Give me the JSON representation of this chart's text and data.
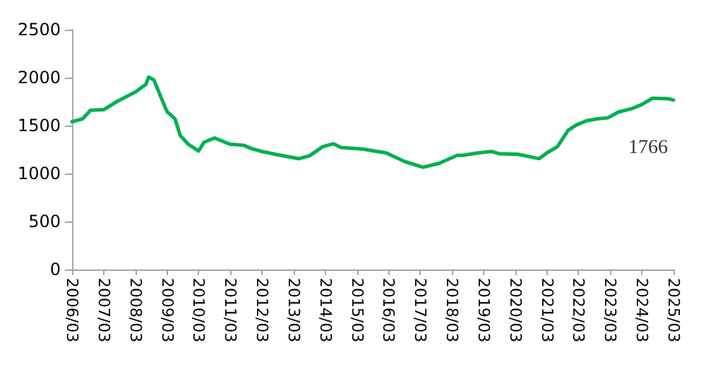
{
  "chart_data": {
    "type": "line",
    "x": [
      "2006-03",
      "2006-07",
      "2006-10",
      "2007-03",
      "2007-08",
      "2008-03",
      "2008-07",
      "2008-08",
      "2008-10",
      "2008-12",
      "2009-03",
      "2009-06",
      "2009-08",
      "2009-11",
      "2010-03",
      "2010-05",
      "2010-09",
      "2011-01",
      "2011-03",
      "2011-08",
      "2011-11",
      "2012-03",
      "2012-08",
      "2013-05",
      "2013-09",
      "2014-02",
      "2014-06",
      "2014-09",
      "2015-05",
      "2016-02",
      "2016-09",
      "2017-04",
      "2017-10",
      "2018-05",
      "2018-07",
      "2019-01",
      "2019-06",
      "2019-09",
      "2020-04",
      "2020-12",
      "2021-03",
      "2021-07",
      "2021-11",
      "2022-02",
      "2022-06",
      "2022-10",
      "2023-02",
      "2023-06",
      "2023-11",
      "2024-03",
      "2024-07",
      "2025-01",
      "2025-03"
    ],
    "series": [
      {
        "color": "#00b050",
        "values": [
          1540,
          1570,
          1660,
          1665,
          1750,
          1850,
          1930,
          2005,
          1975,
          1840,
          1645,
          1570,
          1395,
          1305,
          1235,
          1325,
          1370,
          1325,
          1305,
          1295,
          1260,
          1230,
          1200,
          1155,
          1185,
          1280,
          1310,
          1270,
          1255,
          1215,
          1125,
          1065,
          1105,
          1190,
          1190,
          1215,
          1230,
          1205,
          1200,
          1155,
          1215,
          1280,
          1450,
          1505,
          1550,
          1570,
          1580,
          1640,
          1675,
          1720,
          1785,
          1780,
          1766
        ]
      }
    ],
    "xlim": [
      "2006-03",
      "2025-03"
    ],
    "xticks": [
      {
        "value": "2006-03",
        "label": "2006/03"
      },
      {
        "value": "2007-03",
        "label": "2007/03"
      },
      {
        "value": "2008-03",
        "label": "2008/03"
      },
      {
        "value": "2009-03",
        "label": "2009/03"
      },
      {
        "value": "2010-03",
        "label": "2010/03"
      },
      {
        "value": "2011-03",
        "label": "2011/03"
      },
      {
        "value": "2012-03",
        "label": "2012/03"
      },
      {
        "value": "2013-03",
        "label": "2013/03"
      },
      {
        "value": "2014-03",
        "label": "2014/03"
      },
      {
        "value": "2015-03",
        "label": "2015/03"
      },
      {
        "value": "2016-03",
        "label": "2016/03"
      },
      {
        "value": "2017-03",
        "label": "2017/03"
      },
      {
        "value": "2018-03",
        "label": "2018/03"
      },
      {
        "value": "2019-03",
        "label": "2019/03"
      },
      {
        "value": "2020-03",
        "label": "2020/03"
      },
      {
        "value": "2021-03",
        "label": "2021/03"
      },
      {
        "value": "2022-03",
        "label": "2022/03"
      },
      {
        "value": "2023-03",
        "label": "2023/03"
      },
      {
        "value": "2024-03",
        "label": "2024/03"
      },
      {
        "value": "2025-03",
        "label": "2025/03"
      }
    ],
    "ylim": [
      0,
      2500
    ],
    "yticks": [
      0,
      500,
      1000,
      1500,
      2000,
      2500
    ],
    "annotations": [
      {
        "text": "1766",
        "x": "2025-03",
        "y": 1766
      }
    ],
    "grid": false,
    "marker": "none",
    "line_style": "solid"
  }
}
